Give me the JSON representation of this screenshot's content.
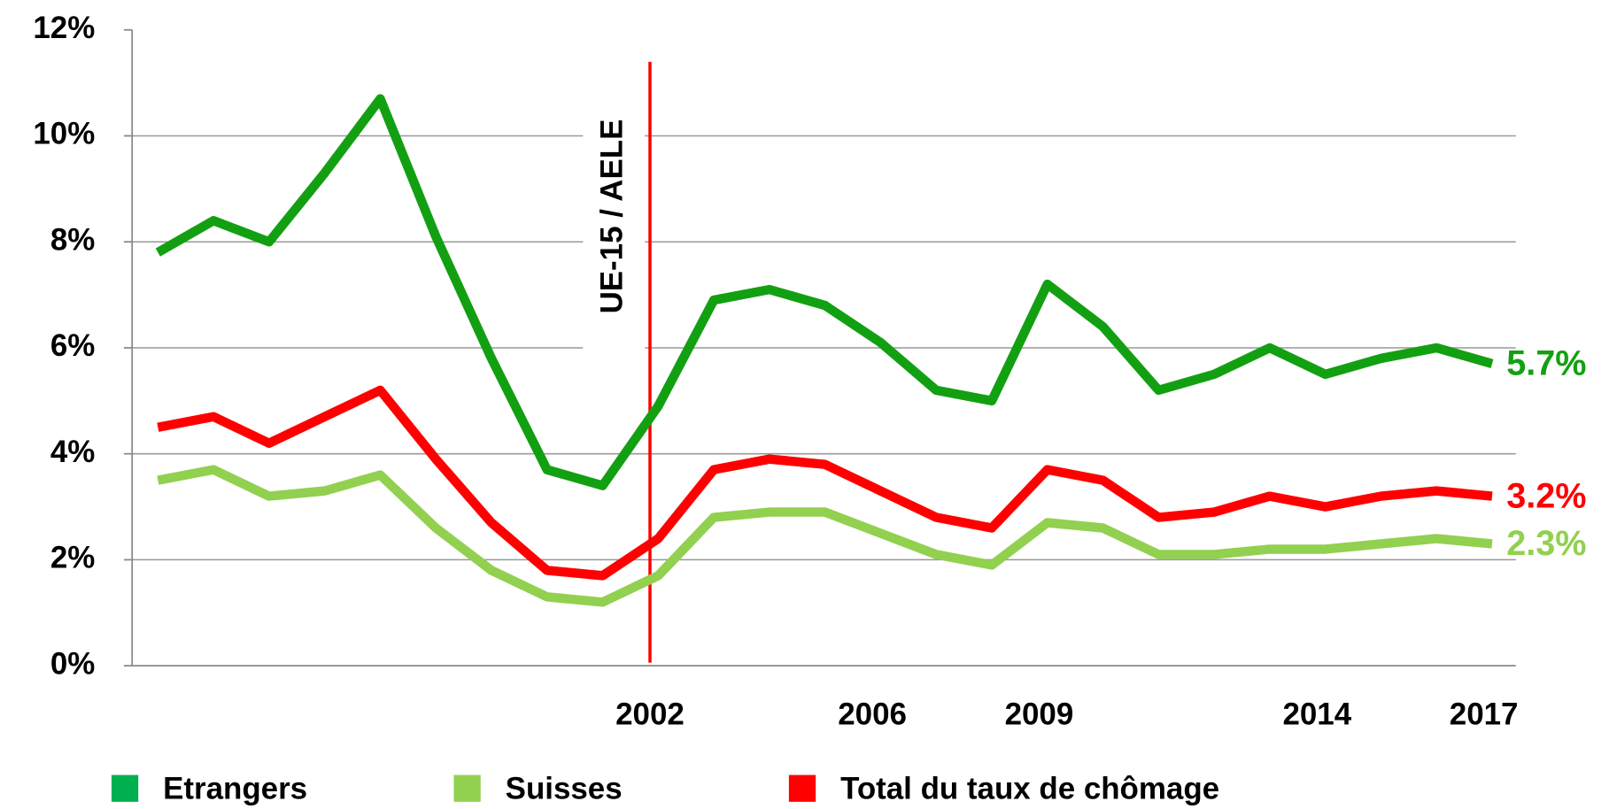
{
  "chart_data": {
    "type": "line",
    "x": [
      1993,
      1994,
      1995,
      1996,
      1997,
      1998,
      1999,
      2000,
      2001,
      2002,
      2003,
      2004,
      2005,
      2006,
      2007,
      2008,
      2009,
      2010,
      2011,
      2012,
      2013,
      2014,
      2015,
      2016,
      2017
    ],
    "xlim": [
      1993,
      2017
    ],
    "xticks": [
      2002,
      2006,
      2009,
      2014,
      2017
    ],
    "ylim": [
      0,
      12
    ],
    "yticks": [
      {
        "value": 0,
        "label": "0%"
      },
      {
        "value": 2,
        "label": "2%"
      },
      {
        "value": 4,
        "label": "4%"
      },
      {
        "value": 6,
        "label": "6%"
      },
      {
        "value": 8,
        "label": "8%"
      },
      {
        "value": 10,
        "label": "10%"
      },
      {
        "value": 12,
        "label": "12%"
      }
    ],
    "grid": true,
    "legend": "bottom",
    "annotations": [
      {
        "text": "UE-15 / AELE",
        "x": 2002,
        "color": "#ff0000"
      }
    ],
    "series": [
      {
        "name": "Etrangers",
        "color": "#12a012",
        "legend_color": "#00b050",
        "values": [
          7.8,
          8.4,
          8.0,
          9.3,
          10.7,
          8.1,
          5.8,
          3.7,
          3.4,
          4.9,
          6.9,
          7.1,
          6.8,
          6.1,
          5.2,
          5.0,
          7.2,
          6.4,
          5.2,
          5.5,
          6.0,
          5.5,
          5.8,
          6.0,
          5.7
        ],
        "value_labels": [
          null,
          null,
          null,
          null,
          null,
          null,
          null,
          null,
          null,
          null,
          null,
          null,
          null,
          null,
          null,
          null,
          null,
          null,
          null,
          null,
          null,
          null,
          null,
          null,
          "5.7%"
        ]
      },
      {
        "name": "Suisses",
        "color": "#92d050",
        "legend_color": "#92d050",
        "values": [
          3.5,
          3.7,
          3.2,
          3.3,
          3.6,
          2.6,
          1.8,
          1.3,
          1.2,
          1.7,
          2.8,
          2.9,
          2.9,
          2.5,
          2.1,
          1.9,
          2.7,
          2.6,
          2.1,
          2.1,
          2.2,
          2.2,
          2.3,
          2.4,
          2.3
        ],
        "value_labels": [
          null,
          null,
          null,
          null,
          null,
          null,
          null,
          null,
          null,
          null,
          null,
          null,
          null,
          null,
          null,
          null,
          null,
          null,
          null,
          null,
          null,
          null,
          null,
          null,
          "2.3%"
        ]
      },
      {
        "name": "Total du taux de chômage",
        "color": "#ff0000",
        "legend_color": "#ff0000",
        "values": [
          4.5,
          4.7,
          4.2,
          4.7,
          5.2,
          3.9,
          2.7,
          1.8,
          1.7,
          2.4,
          3.7,
          3.9,
          3.8,
          3.3,
          2.8,
          2.6,
          3.7,
          3.5,
          2.8,
          2.9,
          3.2,
          3.0,
          3.2,
          3.3,
          3.2
        ],
        "value_labels": [
          null,
          null,
          null,
          null,
          null,
          null,
          null,
          null,
          null,
          null,
          null,
          null,
          null,
          null,
          null,
          null,
          null,
          null,
          null,
          null,
          null,
          null,
          null,
          null,
          "3.2%"
        ]
      }
    ]
  }
}
